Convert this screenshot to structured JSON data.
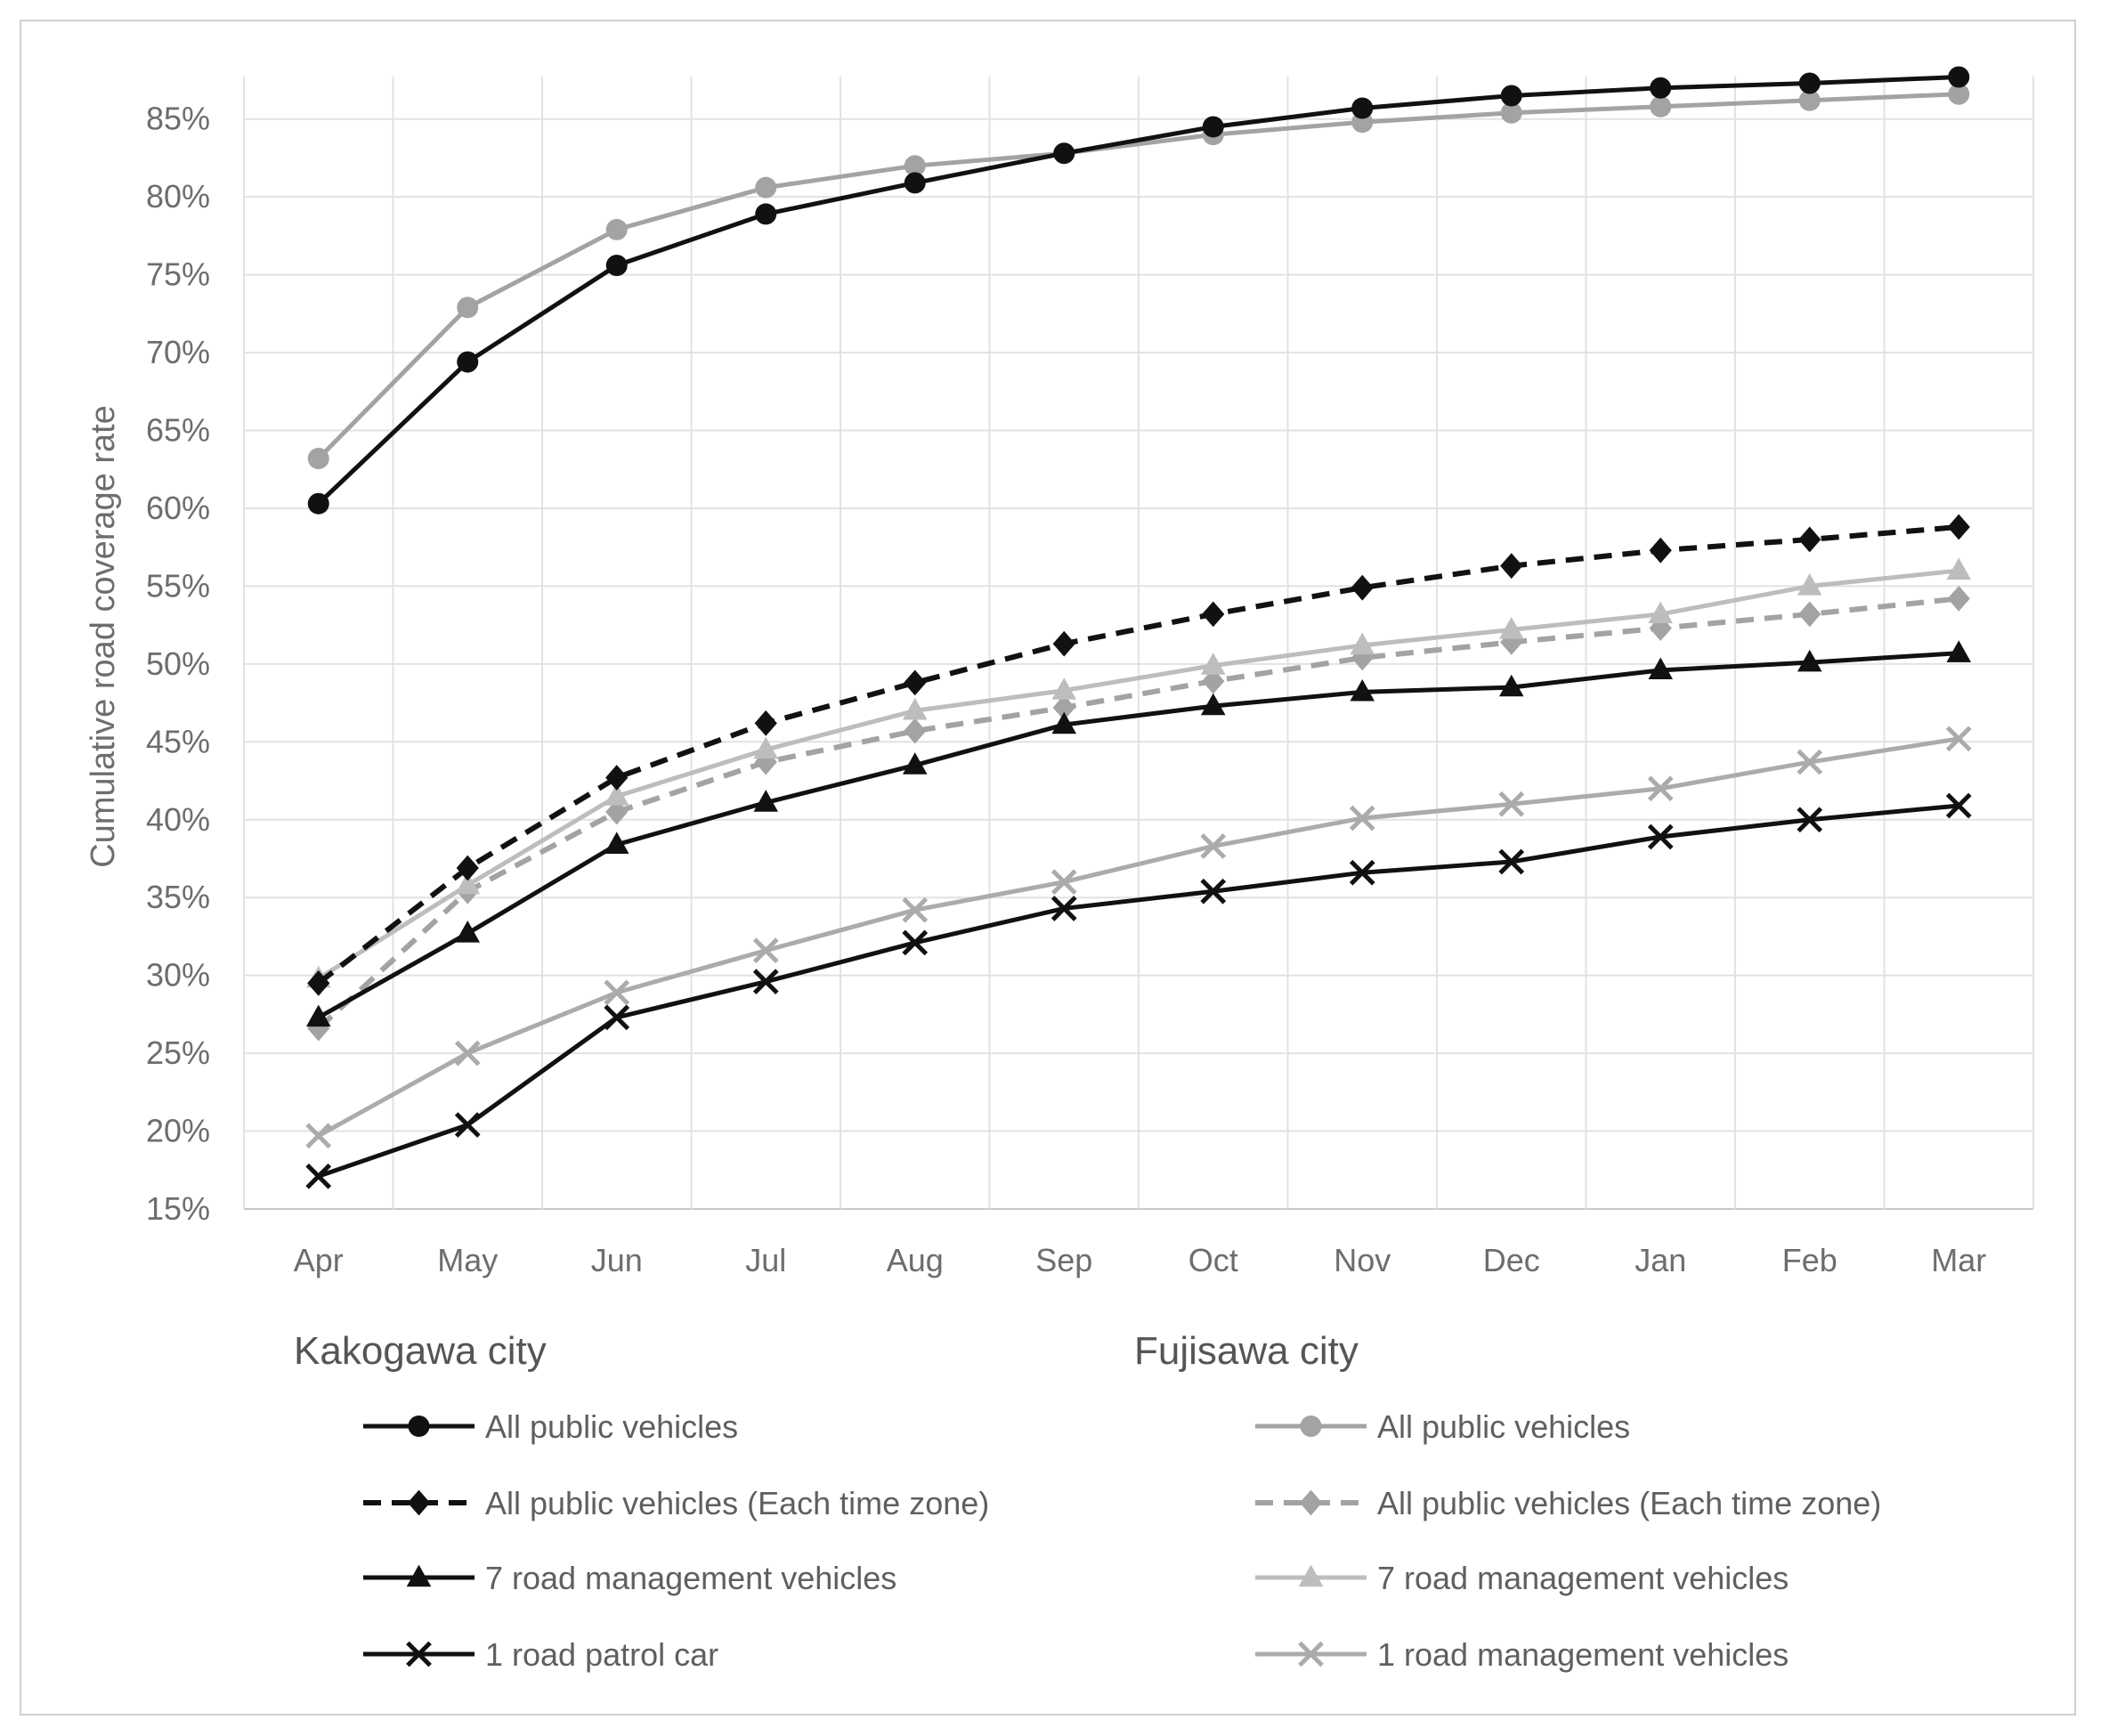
{
  "chart_data": {
    "type": "line",
    "title": "",
    "xlabel": "",
    "ylabel": "Cumulative road coverage rate",
    "categories": [
      "Apr",
      "May",
      "Jun",
      "Jul",
      "Aug",
      "Sep",
      "Oct",
      "Nov",
      "Dec",
      "Jan",
      "Feb",
      "Mar"
    ],
    "yticks": [
      "15%",
      "20%",
      "25%",
      "30%",
      "35%",
      "40%",
      "45%",
      "50%",
      "55%",
      "60%",
      "65%",
      "70%",
      "75%",
      "80%",
      "85%"
    ],
    "ylim": [
      15,
      87.5
    ],
    "grid": true,
    "legend_position": "bottom",
    "groups": [
      {
        "name": "Kakogawa city",
        "color": "#111111"
      },
      {
        "name": "Fujisawa city",
        "color": "#9e9e9e"
      }
    ],
    "series": [
      {
        "name": "All public vehicles",
        "group": "Kakogawa city",
        "color": "#111111",
        "marker": "circle",
        "dashed": false,
        "values": [
          60.3,
          69.4,
          75.6,
          78.9,
          80.9,
          82.8,
          84.5,
          85.7,
          86.5,
          87.0,
          87.3,
          87.7
        ]
      },
      {
        "name": "All public vehicles (Each time zone)",
        "group": "Kakogawa city",
        "color": "#111111",
        "marker": "diamond",
        "dashed": true,
        "values": [
          29.5,
          36.9,
          42.7,
          46.2,
          48.8,
          51.3,
          53.2,
          54.9,
          56.3,
          57.3,
          58.0,
          58.8
        ]
      },
      {
        "name": "7 road management vehicles",
        "group": "Kakogawa city",
        "color": "#111111",
        "marker": "triangle",
        "dashed": false,
        "values": [
          27.3,
          32.7,
          38.4,
          41.1,
          43.5,
          46.1,
          47.3,
          48.2,
          48.5,
          49.6,
          50.1,
          50.7
        ]
      },
      {
        "name": "1 road patrol car",
        "group": "Kakogawa city",
        "color": "#111111",
        "marker": "x",
        "dashed": false,
        "values": [
          17.1,
          20.4,
          27.3,
          29.6,
          32.1,
          34.3,
          35.4,
          36.6,
          37.3,
          38.9,
          40.0,
          40.9
        ]
      },
      {
        "name": "All public vehicles",
        "group": "Fujisawa city",
        "color": "#a3a3a3",
        "marker": "circle",
        "dashed": false,
        "values": [
          63.2,
          72.9,
          77.9,
          80.6,
          82.0,
          82.8,
          84.0,
          84.8,
          85.4,
          85.8,
          86.2,
          86.6
        ]
      },
      {
        "name": "All public vehicles (Each time zone)",
        "group": "Fujisawa city",
        "color": "#a3a3a3",
        "marker": "diamond",
        "dashed": true,
        "values": [
          26.6,
          35.4,
          40.5,
          43.7,
          45.7,
          47.2,
          48.9,
          50.4,
          51.4,
          52.3,
          53.2,
          54.2
        ]
      },
      {
        "name": "7 road management vehicles",
        "group": "Fujisawa city",
        "color": "#bdbdbd",
        "marker": "triangle",
        "dashed": false,
        "values": [
          29.8,
          35.8,
          41.5,
          44.5,
          47.0,
          48.3,
          49.9,
          51.2,
          52.2,
          53.2,
          55.0,
          56.0
        ]
      },
      {
        "name": "1 road management vehicles",
        "group": "Fujisawa city",
        "color": "#ababab",
        "marker": "x",
        "dashed": false,
        "values": [
          19.7,
          25.0,
          28.9,
          31.6,
          34.2,
          36.0,
          38.3,
          40.1,
          41.0,
          42.0,
          43.7,
          45.2
        ]
      }
    ]
  }
}
